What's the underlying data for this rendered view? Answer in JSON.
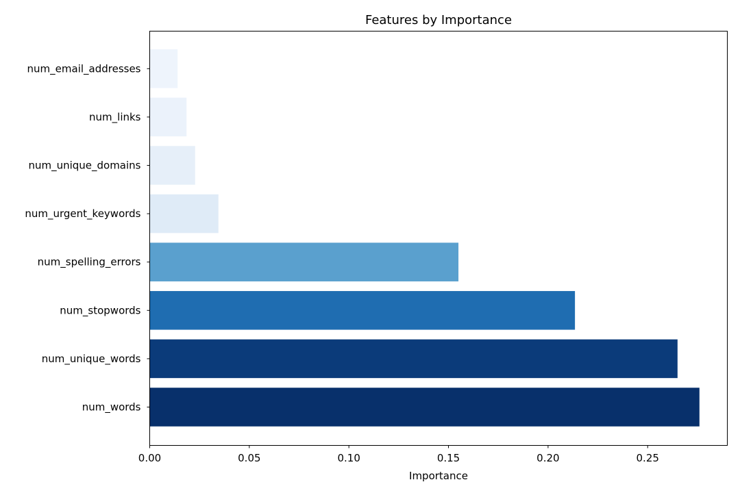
{
  "chart_data": {
    "type": "bar",
    "orientation": "horizontal",
    "title": "Features by Importance",
    "xlabel": "Importance",
    "ylabel": "",
    "xlim": [
      0,
      0.29
    ],
    "x_ticks": [
      0.0,
      0.05,
      0.1,
      0.15,
      0.2,
      0.25
    ],
    "x_tick_labels": [
      "0.00",
      "0.05",
      "0.10",
      "0.15",
      "0.20",
      "0.25"
    ],
    "categories": [
      "num_email_addresses",
      "num_links",
      "num_unique_domains",
      "num_urgent_keywords",
      "num_spelling_errors",
      "num_stopwords",
      "num_unique_words",
      "num_words"
    ],
    "values": [
      0.014,
      0.0185,
      0.0228,
      0.0345,
      0.155,
      0.2135,
      0.265,
      0.276
    ],
    "colors": [
      "#eef4fc",
      "#ebf2fb",
      "#e6eff9",
      "#dfebf7",
      "#5aa0ce",
      "#1f6db1",
      "#0b3b7a",
      "#08306b"
    ],
    "grid": false,
    "legend": "none"
  }
}
